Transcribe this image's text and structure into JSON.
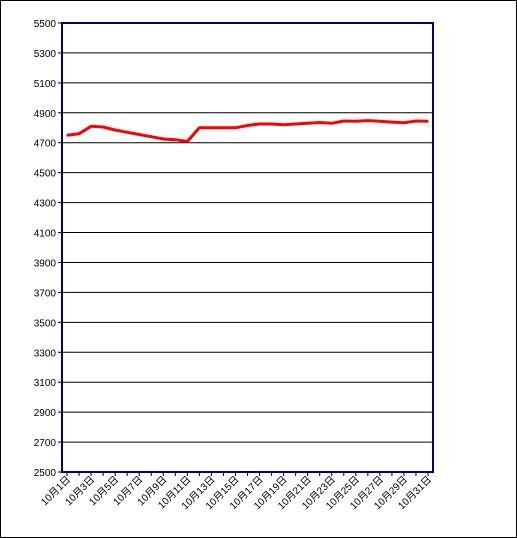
{
  "chart_data": {
    "type": "line",
    "title": "",
    "xlabel": "",
    "ylabel": "",
    "ylim": [
      2500,
      5500
    ],
    "yticks": [
      2500,
      2700,
      2900,
      3100,
      3300,
      3500,
      3700,
      3900,
      4100,
      4300,
      4500,
      4700,
      4900,
      5100,
      5300,
      5500
    ],
    "grid": "horizontal",
    "legend": "none",
    "categories": [
      "10月1日",
      "10月2日",
      "10月3日",
      "10月4日",
      "10月5日",
      "10月6日",
      "10月7日",
      "10月8日",
      "10月9日",
      "10月10日",
      "10月11日",
      "10月12日",
      "10月13日",
      "10月14日",
      "10月15日",
      "10月16日",
      "10月17日",
      "10月18日",
      "10月19日",
      "10月20日",
      "10月21日",
      "10月22日",
      "10月23日",
      "10月24日",
      "10月25日",
      "10月26日",
      "10月27日",
      "10月28日",
      "10月29日",
      "10月30日",
      "10月31日"
    ],
    "xtick_labels": [
      "10月1日",
      "10月3日",
      "10月5日",
      "10月7日",
      "10月9日",
      "10月11日",
      "10月13日",
      "10月15日",
      "10月17日",
      "10月19日",
      "10月21日",
      "10月23日",
      "10月25日",
      "10月27日",
      "10月29日",
      "10月31日"
    ],
    "series": [
      {
        "color": "#ff0000",
        "values": [
          4750,
          4760,
          4810,
          4805,
          4785,
          4770,
          4755,
          4740,
          4725,
          4720,
          4708,
          4800,
          4800,
          4800,
          4800,
          4815,
          4825,
          4825,
          4820,
          4825,
          4830,
          4835,
          4830,
          4845,
          4843,
          4848,
          4843,
          4838,
          4833,
          4845,
          4843
        ]
      }
    ]
  }
}
